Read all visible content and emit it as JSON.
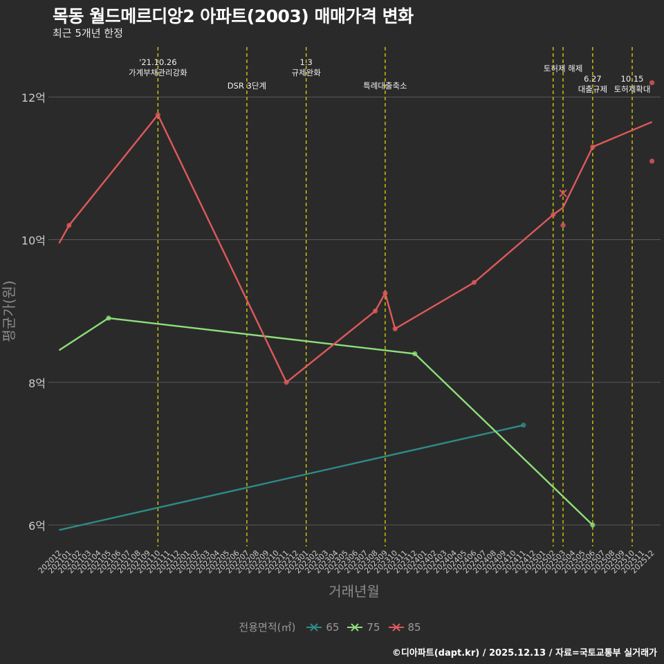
{
  "title": "목동 월드메르디앙2 아파트(2003) 매매가격 변화",
  "subtitle": "최근 5개년 한정",
  "caption": "©디아파트(dapt.kr) / 2025.12.13 / 자료=국토교통부 실거래가",
  "colors": {
    "background": "#2b2a2b",
    "grid": "#5a5a5a",
    "event_line": "#e8e800",
    "axis_text": "#cccccc",
    "axis_title": "#8c8c8c",
    "s65": "#2e8c87",
    "s75": "#8ee07a",
    "s85": "#e05a5a"
  },
  "chart_data": {
    "type": "line",
    "xlabel": "거래년월",
    "ylabel": "평균가(원)",
    "ylim": [
      5.7,
      12.7
    ],
    "yticks": [
      6,
      8,
      10,
      12
    ],
    "ytick_labels": [
      "6억",
      "8억",
      "10억",
      "12억"
    ],
    "categories": [
      "202012",
      "202101",
      "202102",
      "202103",
      "202104",
      "202105",
      "202106",
      "202107",
      "202108",
      "202109",
      "202110",
      "202111",
      "202112",
      "202201",
      "202202",
      "202203",
      "202204",
      "202205",
      "202206",
      "202207",
      "202208",
      "202209",
      "202210",
      "202211",
      "202212",
      "202301",
      "202302",
      "202303",
      "202304",
      "202305",
      "202306",
      "202307",
      "202308",
      "202309",
      "202310",
      "202311",
      "202312",
      "202401",
      "202402",
      "202403",
      "202404",
      "202405",
      "202406",
      "202407",
      "202408",
      "202409",
      "202410",
      "202411",
      "202412",
      "202501",
      "202502",
      "202503",
      "202504",
      "202505",
      "202506",
      "202507",
      "202508",
      "202509",
      "202510",
      "202511",
      "202512"
    ],
    "legend_title": "전용면적(㎡)",
    "series": [
      {
        "name": "65",
        "color_key": "s65",
        "line": [
          [
            "202012",
            5.93
          ],
          [
            "202411",
            7.4
          ]
        ],
        "points": [
          [
            "202411",
            7.4
          ]
        ]
      },
      {
        "name": "75",
        "color_key": "s75",
        "line": [
          [
            "202012",
            8.45
          ],
          [
            "202105",
            8.9
          ],
          [
            "202312",
            8.4
          ],
          [
            "202506",
            6.0
          ]
        ],
        "points": [
          [
            "202105",
            8.9
          ],
          [
            "202312",
            8.4
          ],
          [
            "202506",
            6.0
          ]
        ]
      },
      {
        "name": "85",
        "color_key": "s85",
        "line": [
          [
            "202012",
            9.95
          ],
          [
            "202101",
            10.2
          ],
          [
            "202110",
            11.75
          ],
          [
            "202211",
            8.0
          ],
          [
            "202308",
            9.0
          ],
          [
            "202309",
            9.25
          ],
          [
            "202310",
            8.75
          ],
          [
            "202406",
            9.4
          ],
          [
            "202502",
            10.35
          ],
          [
            "202503",
            10.45
          ],
          [
            "202506",
            11.3
          ],
          [
            "202512",
            11.65
          ]
        ],
        "points": [
          [
            "202101",
            10.2
          ],
          [
            "202110",
            11.75
          ],
          [
            "202211",
            8.0
          ],
          [
            "202308",
            9.0
          ],
          [
            "202309",
            9.25
          ],
          [
            "202310",
            8.75
          ],
          [
            "202406",
            9.4
          ],
          [
            "202502",
            10.35
          ],
          [
            "202503",
            10.2
          ],
          [
            "202506",
            11.3
          ],
          [
            "202512",
            11.1
          ],
          [
            "202512",
            12.2
          ]
        ],
        "crosses": [
          [
            "202503",
            10.65
          ]
        ]
      }
    ],
    "events": [
      {
        "x": "202110",
        "lines": [
          "'21.10.26",
          "가계부채관리강화"
        ],
        "row": 0
      },
      {
        "x": "202207",
        "lines": [
          "DSR 3단계"
        ],
        "row": 2
      },
      {
        "x": "202301",
        "lines": [
          "1.3",
          "규제완화"
        ],
        "row": 0
      },
      {
        "x": "202309",
        "lines": [
          "특례대출축소"
        ],
        "row": 2
      },
      {
        "x": "202502",
        "lines": [],
        "row": 0
      },
      {
        "x": "202503",
        "lines": [
          "토허제 해제"
        ],
        "row": 1
      },
      {
        "x": "202506",
        "lines": [
          "6.27",
          "대출규제"
        ],
        "row": 2
      },
      {
        "x": "202510",
        "lines": [
          "10.15",
          "토허제확대"
        ],
        "row": 2
      }
    ]
  }
}
